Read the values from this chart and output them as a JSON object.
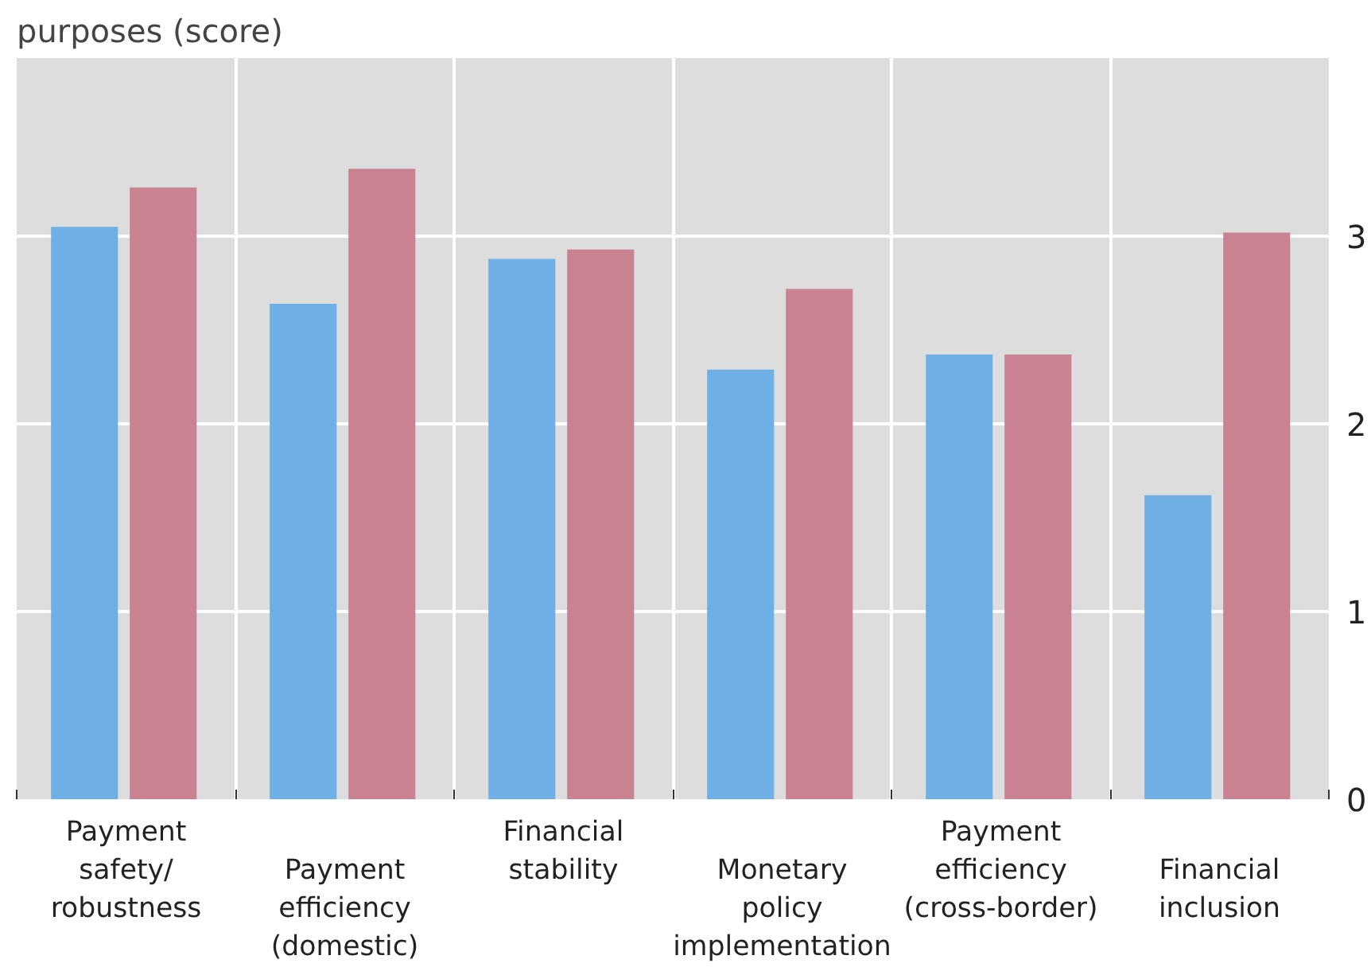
{
  "chart_data": {
    "type": "bar",
    "title": "purposes (score)",
    "categories": [
      "Payment safety/ robustness",
      "Payment efficiency (domestic)",
      "Financial stability",
      "Monetary policy implementation",
      "Payment efficiency (cross-border)",
      "Financial inclusion"
    ],
    "series": [
      {
        "color": "#6eb0e6",
        "values": [
          3.05,
          2.64,
          2.88,
          2.29,
          2.37,
          1.62
        ]
      },
      {
        "color": "#c88292",
        "values": [
          3.26,
          3.36,
          2.93,
          2.72,
          2.37,
          3.02
        ]
      }
    ],
    "ylim": [
      0,
      3.95
    ],
    "yticks": [
      0,
      1,
      2,
      3
    ],
    "grid": true
  }
}
